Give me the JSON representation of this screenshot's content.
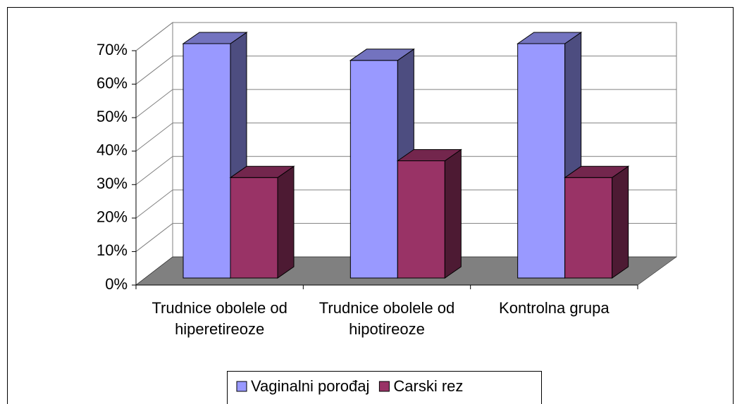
{
  "chart_data": {
    "type": "bar3d",
    "categories": [
      "Trudnice obolele od hiperetireoze",
      "Trudnice obolele od hipotireoze",
      "Kontrolna grupa"
    ],
    "series": [
      {
        "name": "Vaginalni porođaj",
        "color": "#9999ff",
        "values": [
          70,
          65,
          70
        ]
      },
      {
        "name": "Carski rez",
        "color": "#993366",
        "values": [
          30,
          35,
          30
        ]
      }
    ],
    "ylim": [
      0,
      70
    ],
    "yticks": [
      {
        "value": 0,
        "label": "0%"
      },
      {
        "value": 10,
        "label": "10%"
      },
      {
        "value": 20,
        "label": "20%"
      },
      {
        "value": 30,
        "label": "30%"
      },
      {
        "value": 40,
        "label": "40%"
      },
      {
        "value": 50,
        "label": "50%"
      },
      {
        "value": 60,
        "label": "60%"
      },
      {
        "value": 70,
        "label": "70%"
      }
    ],
    "grid": true,
    "legend": "bottom"
  }
}
